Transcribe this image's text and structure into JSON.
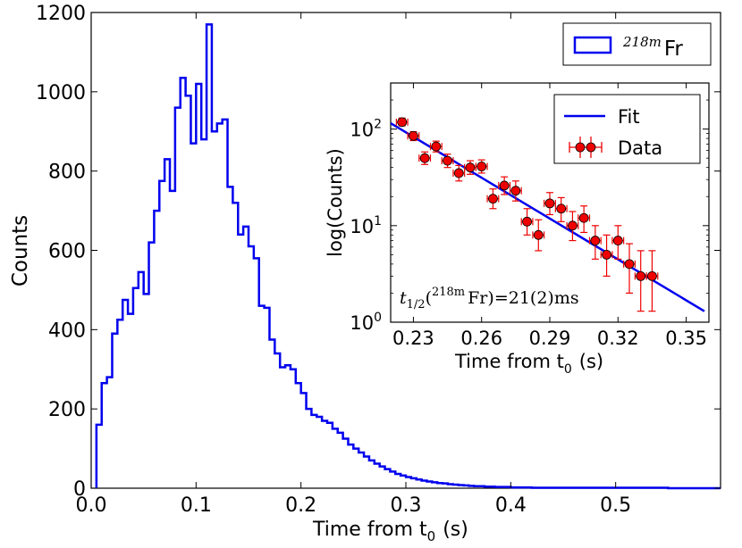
{
  "chart_data": [
    {
      "type": "histogram",
      "xlabel": "Time from t",
      "xlabel_sub": "0",
      "xlabel_unit": "(s)",
      "ylabel": "Counts",
      "xlim": [
        0.0,
        0.6
      ],
      "ylim": [
        0,
        1200
      ],
      "xticks": [
        "0.0",
        "0.1",
        "0.2",
        "0.3",
        "0.4",
        "0.5"
      ],
      "yticks": [
        "0",
        "200",
        "400",
        "600",
        "800",
        "1000",
        "1200"
      ],
      "legend": {
        "position": "top-right",
        "label_sup": "218m",
        "label_main": "Fr"
      },
      "series_color": "#0000ee",
      "bin_width": 0.005,
      "bin_start": 0.005,
      "values": [
        160,
        265,
        280,
        390,
        425,
        475,
        440,
        505,
        545,
        490,
        620,
        700,
        775,
        830,
        750,
        960,
        1035,
        990,
        870,
        1020,
        880,
        1170,
        900,
        920,
        930,
        760,
        720,
        640,
        660,
        610,
        580,
        460,
        455,
        375,
        340,
        305,
        310,
        300,
        265,
        240,
        200,
        185,
        180,
        170,
        165,
        150,
        140,
        125,
        110,
        100,
        90,
        80,
        70,
        62,
        55,
        48,
        42,
        36,
        32,
        28,
        25,
        22,
        19,
        17,
        15,
        13,
        12,
        10,
        9,
        8,
        7,
        6,
        5,
        5,
        4,
        4,
        3,
        3,
        3,
        2,
        2,
        2,
        2,
        1,
        1,
        1,
        1,
        1,
        1,
        1,
        1,
        1,
        1,
        1,
        1,
        1,
        1,
        1,
        1,
        1,
        1,
        1,
        1,
        1,
        1,
        1,
        1,
        1,
        1,
        0,
        0,
        0,
        0,
        0,
        0,
        0,
        0,
        0,
        0
      ]
    },
    {
      "type": "scatter",
      "xlabel": "Time from t",
      "xlabel_sub": "0",
      "xlabel_unit": "(s)",
      "ylabel": "log(Counts)",
      "yscale": "log",
      "xlim": [
        0.22,
        0.36
      ],
      "ylim": [
        1,
        300
      ],
      "xticks": [
        "0.23",
        "0.26",
        "0.29",
        "0.32",
        "0.35"
      ],
      "yticks_base": "10",
      "yticks_exp": [
        "0",
        "1",
        "2"
      ],
      "legend": {
        "position": "top-right",
        "fit_label": "Fit",
        "data_label": "Data"
      },
      "fit_color": "#0000ee",
      "data_color": "#ee0000",
      "fit_line": {
        "x": [
          0.22,
          0.358
        ],
        "y": [
          115,
          1.3
        ]
      },
      "xerr": 0.0025,
      "points": [
        {
          "x": 0.225,
          "y": 118,
          "ylo": 108,
          "yhi": 130
        },
        {
          "x": 0.23,
          "y": 85,
          "ylo": 76,
          "yhi": 94
        },
        {
          "x": 0.235,
          "y": 50,
          "ylo": 43,
          "yhi": 58
        },
        {
          "x": 0.24,
          "y": 66,
          "ylo": 58,
          "yhi": 75
        },
        {
          "x": 0.245,
          "y": 47,
          "ylo": 40,
          "yhi": 55
        },
        {
          "x": 0.25,
          "y": 35,
          "ylo": 29,
          "yhi": 42
        },
        {
          "x": 0.255,
          "y": 40,
          "ylo": 34,
          "yhi": 47
        },
        {
          "x": 0.26,
          "y": 41,
          "ylo": 35,
          "yhi": 48
        },
        {
          "x": 0.265,
          "y": 19,
          "ylo": 15,
          "yhi": 24
        },
        {
          "x": 0.27,
          "y": 26,
          "ylo": 21,
          "yhi": 32
        },
        {
          "x": 0.275,
          "y": 23,
          "ylo": 18,
          "yhi": 29
        },
        {
          "x": 0.28,
          "y": 11,
          "ylo": 8,
          "yhi": 15
        },
        {
          "x": 0.285,
          "y": 8,
          "ylo": 5.5,
          "yhi": 11.5
        },
        {
          "x": 0.29,
          "y": 17,
          "ylo": 13,
          "yhi": 22
        },
        {
          "x": 0.295,
          "y": 15,
          "ylo": 11,
          "yhi": 19.5
        },
        {
          "x": 0.3,
          "y": 10,
          "ylo": 7,
          "yhi": 14
        },
        {
          "x": 0.305,
          "y": 12,
          "ylo": 8.5,
          "yhi": 16
        },
        {
          "x": 0.31,
          "y": 7,
          "ylo": 4.5,
          "yhi": 10
        },
        {
          "x": 0.315,
          "y": 5,
          "ylo": 3,
          "yhi": 8
        },
        {
          "x": 0.32,
          "y": 7,
          "ylo": 4.5,
          "yhi": 10
        },
        {
          "x": 0.325,
          "y": 4,
          "ylo": 2,
          "yhi": 6.5
        },
        {
          "x": 0.33,
          "y": 3,
          "ylo": 1.3,
          "yhi": 5.5
        },
        {
          "x": 0.335,
          "y": 3,
          "ylo": 1.3,
          "yhi": 5.5
        }
      ],
      "annotation": {
        "t": "t",
        "t_sub": "1/2",
        "open": "(",
        "iso_sup": "218m",
        "iso": "Fr",
        "close": ")",
        "eq": "=21(2)ms"
      }
    }
  ]
}
